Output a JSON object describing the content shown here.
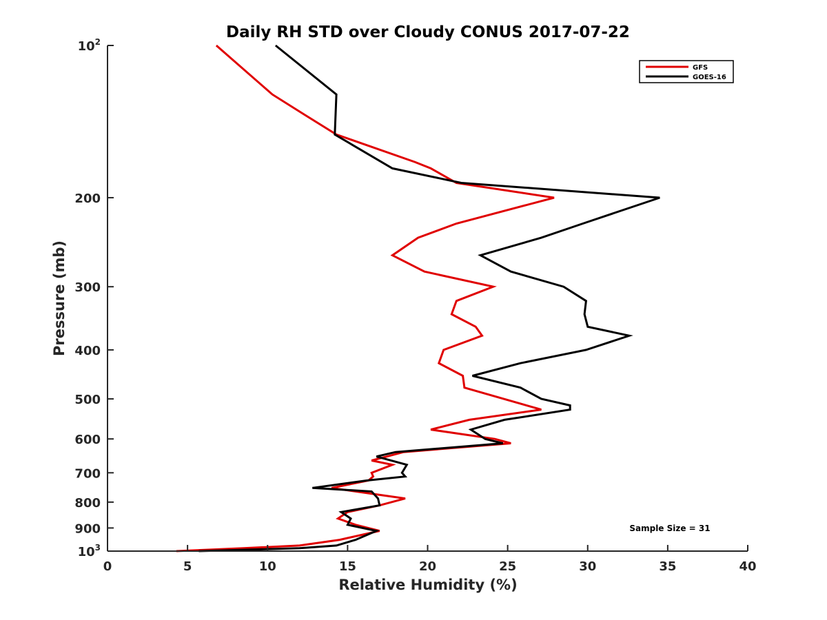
{
  "chart_data": {
    "type": "line",
    "title": "Daily RH STD over Cloudy CONUS 2017-07-22",
    "xlabel": "Relative Humidity (%)",
    "ylabel": "Pressure (mb)",
    "xlim": [
      0,
      40
    ],
    "ylim": [
      100,
      1000
    ],
    "yscale": "log",
    "y_reversed": true,
    "x_ticks": [
      {
        "value": 0,
        "label": "0"
      },
      {
        "value": 5,
        "label": "5"
      },
      {
        "value": 10,
        "label": "10"
      },
      {
        "value": 15,
        "label": "15"
      },
      {
        "value": 20,
        "label": "20"
      },
      {
        "value": 25,
        "label": "25"
      },
      {
        "value": 30,
        "label": "30"
      },
      {
        "value": 35,
        "label": "35"
      },
      {
        "value": 40,
        "label": "40"
      }
    ],
    "y_ticks": [
      {
        "value": 100,
        "base": "10",
        "exp": "2"
      },
      {
        "value": 200,
        "label": "200"
      },
      {
        "value": 300,
        "label": "300"
      },
      {
        "value": 400,
        "label": "400"
      },
      {
        "value": 500,
        "label": "500"
      },
      {
        "value": 600,
        "label": "600"
      },
      {
        "value": 700,
        "label": "700"
      },
      {
        "value": 800,
        "label": "800"
      },
      {
        "value": 900,
        "label": "900"
      },
      {
        "value": 1000,
        "base": "10",
        "exp": "3"
      }
    ],
    "legend_position": "top-right",
    "grid": false,
    "series": [
      {
        "name": "GFS",
        "color": "#e00000",
        "points": [
          {
            "x": 6.8,
            "y": 100
          },
          {
            "x": 10.3,
            "y": 125
          },
          {
            "x": 12.3,
            "y": 137
          },
          {
            "x": 14.3,
            "y": 150
          },
          {
            "x": 19.2,
            "y": 170
          },
          {
            "x": 20.2,
            "y": 175
          },
          {
            "x": 21.8,
            "y": 187
          },
          {
            "x": 27.9,
            "y": 200
          },
          {
            "x": 21.8,
            "y": 225
          },
          {
            "x": 19.4,
            "y": 240
          },
          {
            "x": 17.8,
            "y": 260
          },
          {
            "x": 19.8,
            "y": 280
          },
          {
            "x": 24.1,
            "y": 300
          },
          {
            "x": 21.8,
            "y": 320
          },
          {
            "x": 21.5,
            "y": 340
          },
          {
            "x": 23.0,
            "y": 360
          },
          {
            "x": 23.4,
            "y": 375
          },
          {
            "x": 21.0,
            "y": 400
          },
          {
            "x": 20.7,
            "y": 425
          },
          {
            "x": 22.2,
            "y": 450
          },
          {
            "x": 22.3,
            "y": 475
          },
          {
            "x": 27.1,
            "y": 525
          },
          {
            "x": 22.6,
            "y": 550
          },
          {
            "x": 20.2,
            "y": 575
          },
          {
            "x": 24.2,
            "y": 600
          },
          {
            "x": 25.2,
            "y": 612
          },
          {
            "x": 18.5,
            "y": 637
          },
          {
            "x": 16.5,
            "y": 662
          },
          {
            "x": 17.8,
            "y": 675
          },
          {
            "x": 16.5,
            "y": 700
          },
          {
            "x": 16.6,
            "y": 712
          },
          {
            "x": 16.3,
            "y": 725
          },
          {
            "x": 14.0,
            "y": 750
          },
          {
            "x": 15.5,
            "y": 762
          },
          {
            "x": 18.6,
            "y": 787
          },
          {
            "x": 17.0,
            "y": 812
          },
          {
            "x": 15.0,
            "y": 837
          },
          {
            "x": 14.4,
            "y": 862
          },
          {
            "x": 15.5,
            "y": 887
          },
          {
            "x": 17.0,
            "y": 912
          },
          {
            "x": 14.5,
            "y": 950
          },
          {
            "x": 12.0,
            "y": 975
          },
          {
            "x": 8.5,
            "y": 987
          },
          {
            "x": 4.3,
            "y": 1000
          }
        ]
      },
      {
        "name": "GOES-16",
        "color": "#000000",
        "points": [
          {
            "x": 10.5,
            "y": 100
          },
          {
            "x": 14.3,
            "y": 125
          },
          {
            "x": 14.2,
            "y": 150
          },
          {
            "x": 17.8,
            "y": 175
          },
          {
            "x": 22.1,
            "y": 187
          },
          {
            "x": 34.5,
            "y": 200
          },
          {
            "x": 29.7,
            "y": 225
          },
          {
            "x": 27.1,
            "y": 240
          },
          {
            "x": 23.3,
            "y": 260
          },
          {
            "x": 25.2,
            "y": 280
          },
          {
            "x": 28.5,
            "y": 300
          },
          {
            "x": 29.9,
            "y": 320
          },
          {
            "x": 29.8,
            "y": 340
          },
          {
            "x": 30.0,
            "y": 360
          },
          {
            "x": 32.6,
            "y": 375
          },
          {
            "x": 29.9,
            "y": 400
          },
          {
            "x": 25.8,
            "y": 425
          },
          {
            "x": 22.8,
            "y": 450
          },
          {
            "x": 25.8,
            "y": 475
          },
          {
            "x": 27.1,
            "y": 500
          },
          {
            "x": 28.9,
            "y": 515
          },
          {
            "x": 28.9,
            "y": 525
          },
          {
            "x": 24.8,
            "y": 550
          },
          {
            "x": 22.7,
            "y": 575
          },
          {
            "x": 23.6,
            "y": 600
          },
          {
            "x": 24.7,
            "y": 612
          },
          {
            "x": 18.0,
            "y": 637
          },
          {
            "x": 16.8,
            "y": 650
          },
          {
            "x": 18.7,
            "y": 675
          },
          {
            "x": 18.4,
            "y": 700
          },
          {
            "x": 18.6,
            "y": 712
          },
          {
            "x": 16.2,
            "y": 725
          },
          {
            "x": 12.8,
            "y": 750
          },
          {
            "x": 16.5,
            "y": 762
          },
          {
            "x": 16.9,
            "y": 787
          },
          {
            "x": 17.0,
            "y": 812
          },
          {
            "x": 14.6,
            "y": 837
          },
          {
            "x": 15.2,
            "y": 862
          },
          {
            "x": 15.0,
            "y": 887
          },
          {
            "x": 16.8,
            "y": 912
          },
          {
            "x": 15.5,
            "y": 950
          },
          {
            "x": 14.3,
            "y": 975
          },
          {
            "x": 12.0,
            "y": 987
          },
          {
            "x": 5.7,
            "y": 1000
          }
        ]
      }
    ],
    "annotations": [
      {
        "text": "Sample Size = 31"
      }
    ]
  }
}
